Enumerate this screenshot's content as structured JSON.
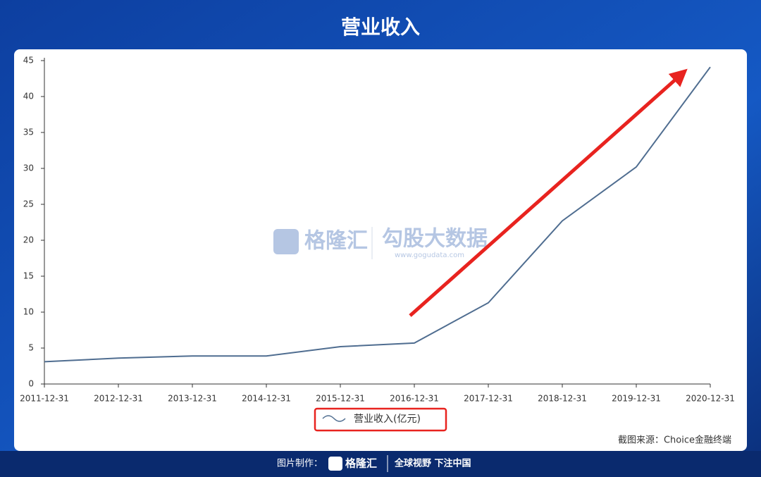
{
  "chart_data": {
    "type": "line",
    "title": "营业收入",
    "categories": [
      "2011-12-31",
      "2012-12-31",
      "2013-12-31",
      "2014-12-31",
      "2015-12-31",
      "2016-12-31",
      "2017-12-31",
      "2018-12-31",
      "2019-12-31",
      "2020-12-31"
    ],
    "series": [
      {
        "name": "营业收入(亿元)",
        "color": "#4f6d90",
        "values": [
          3.1,
          3.6,
          3.9,
          3.9,
          5.2,
          5.7,
          11.3,
          22.7,
          30.2,
          44.1
        ]
      }
    ],
    "ylim": [
      0,
      45
    ],
    "yticks": [
      0,
      5,
      10,
      15,
      20,
      25,
      30,
      35,
      40,
      45
    ],
    "grid": false
  },
  "watermark": {
    "brand": "格隆汇",
    "product": "勾股大数据",
    "url": "www.gogudata.com"
  },
  "source": "截图来源：Choice金融终端",
  "footer": {
    "label": "图片制作：",
    "brand": "格隆汇",
    "slogan": "全球视野 下注中国"
  }
}
